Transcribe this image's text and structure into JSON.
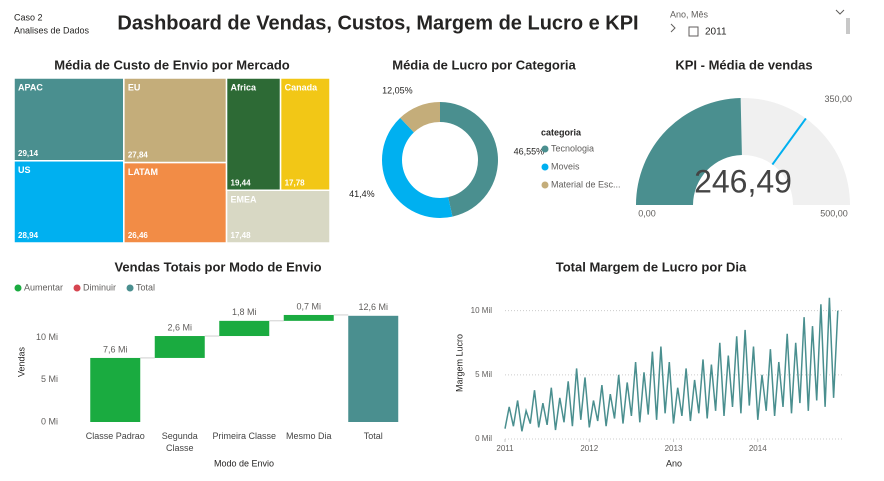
{
  "header": {
    "case": "Caso 2",
    "subtitle": "Analises de Dados",
    "title": "Dashboard de Vendas, Custos, Margem de Lucro e KPI"
  },
  "slicer": {
    "label": "Ano, Mês",
    "items": [
      "2011"
    ]
  },
  "chart_data": [
    {
      "type": "treemap",
      "title": "Média de Custo de Envio por Mercado",
      "categories": [
        "APAC",
        "US",
        "EU",
        "LATAM",
        "Africa",
        "Canada",
        "EMEA"
      ],
      "values": [
        29.14,
        28.94,
        27.84,
        26.46,
        19.44,
        17.78,
        17.48
      ],
      "value_labels": [
        "29,14",
        "28,94",
        "27,84",
        "26,46",
        "19,44",
        "17,78",
        "17,48"
      ],
      "colors": [
        "#4a8f8f",
        "#00b0f0",
        "#c4ad7a",
        "#f28c46",
        "#2d6a35",
        "#f2c716",
        "#d8d8c4"
      ]
    },
    {
      "type": "donut",
      "title": "Média de Lucro por Categoria",
      "legend_title": "categoria",
      "categories": [
        "Tecnologia",
        "Moveis",
        "Material de Esc..."
      ],
      "values": [
        46.55,
        41.4,
        12.05
      ],
      "value_labels": [
        "46,55%",
        "41,4%",
        "12,05%"
      ],
      "colors": [
        "#4a8f8f",
        "#00b0f0",
        "#c4ad7a"
      ]
    },
    {
      "type": "gauge",
      "title": "KPI - Média de vendas",
      "value": 246.49,
      "value_label": "246,49",
      "min": {
        "value": 0,
        "label": "0,00"
      },
      "max": {
        "value": 500,
        "label": "500,00"
      },
      "target": {
        "value": 350,
        "label": "350,00"
      },
      "color": "#4a8f8f",
      "track_color": "#f0f0f0",
      "target_color": "#00b0f0"
    },
    {
      "type": "waterfall",
      "title": "Vendas Totais por Modo de Envio",
      "categories": [
        "Classe Padrao",
        "Segunda Classe",
        "Primeira Classe",
        "Mesmo Dia",
        "Total"
      ],
      "values": [
        7.6,
        2.6,
        1.8,
        0.7,
        12.6
      ],
      "value_labels": [
        "7,6 Mi",
        "2,6 Mi",
        "1,8 Mi",
        "0,7 Mi",
        "12,6 Mi"
      ],
      "totals": [
        false,
        false,
        false,
        false,
        true
      ],
      "legend": [
        {
          "name": "Aumentar",
          "color": "#1aab40"
        },
        {
          "name": "Diminuir",
          "color": "#d64550"
        },
        {
          "name": "Total",
          "color": "#4a8f8f"
        }
      ],
      "xlabel": "Modo de Envio",
      "ylabel": "Vendas",
      "ylim": [
        0,
        14
      ],
      "yticks": [
        {
          "value": 0,
          "label": "0 Mi"
        },
        {
          "value": 5,
          "label": "5 Mi"
        },
        {
          "value": 10,
          "label": "10 Mi"
        }
      ]
    },
    {
      "type": "line",
      "title": "Total Margem de Lucro por Dia",
      "xlabel": "Ano",
      "ylabel": "Margem Lucro",
      "color": "#4a8f8f",
      "x": [
        2011,
        2011.05,
        2011.1,
        2011.15,
        2011.2,
        2011.25,
        2011.3,
        2011.35,
        2011.4,
        2011.45,
        2011.5,
        2011.55,
        2011.6,
        2011.65,
        2011.7,
        2011.75,
        2011.8,
        2011.85,
        2011.9,
        2011.95,
        2012,
        2012.05,
        2012.1,
        2012.15,
        2012.2,
        2012.25,
        2012.3,
        2012.35,
        2012.4,
        2012.45,
        2012.5,
        2012.55,
        2012.6,
        2012.65,
        2012.7,
        2012.75,
        2012.8,
        2012.85,
        2012.9,
        2012.95,
        2013,
        2013.05,
        2013.1,
        2013.15,
        2013.2,
        2013.25,
        2013.3,
        2013.35,
        2013.4,
        2013.45,
        2013.5,
        2013.55,
        2013.6,
        2013.65,
        2013.7,
        2013.75,
        2013.8,
        2013.85,
        2013.9,
        2013.95,
        2014,
        2014.05,
        2014.1,
        2014.15,
        2014.2,
        2014.25,
        2014.3,
        2014.35,
        2014.4,
        2014.45,
        2014.5,
        2014.55,
        2014.6,
        2014.65,
        2014.7,
        2014.75,
        2014.8,
        2014.85,
        2014.9,
        2014.95
      ],
      "values": [
        0.8,
        2.5,
        1.0,
        3.0,
        0.6,
        2.2,
        1.2,
        3.8,
        0.9,
        2.8,
        1.1,
        4.0,
        0.7,
        3.2,
        1.3,
        4.5,
        1.0,
        5.5,
        1.5,
        4.8,
        0.9,
        3.0,
        1.4,
        4.2,
        1.0,
        3.5,
        1.6,
        5.0,
        1.2,
        4.4,
        1.8,
        6.0,
        1.3,
        5.2,
        1.9,
        6.8,
        1.5,
        7.2,
        2.0,
        6.0,
        1.2,
        4.0,
        1.8,
        5.5,
        1.4,
        4.6,
        2.0,
        6.2,
        1.6,
        5.8,
        2.2,
        7.5,
        1.8,
        6.5,
        2.5,
        8.0,
        2.0,
        8.5,
        2.6,
        7.2,
        1.5,
        5.0,
        2.2,
        7.0,
        1.8,
        6.0,
        2.5,
        8.2,
        2.0,
        7.5,
        2.8,
        9.5,
        2.2,
        8.8,
        3.0,
        10.5,
        2.5,
        11.0,
        3.2,
        10.0
      ],
      "xlim": [
        2011,
        2015
      ],
      "xticks": [
        2011,
        2012,
        2013,
        2014
      ],
      "ylim": [
        0,
        12
      ],
      "yticks": [
        {
          "value": 0,
          "label": "0 Mil"
        },
        {
          "value": 5,
          "label": "5 Mil"
        },
        {
          "value": 10,
          "label": "10 Mil"
        }
      ],
      "grid": true
    }
  ]
}
